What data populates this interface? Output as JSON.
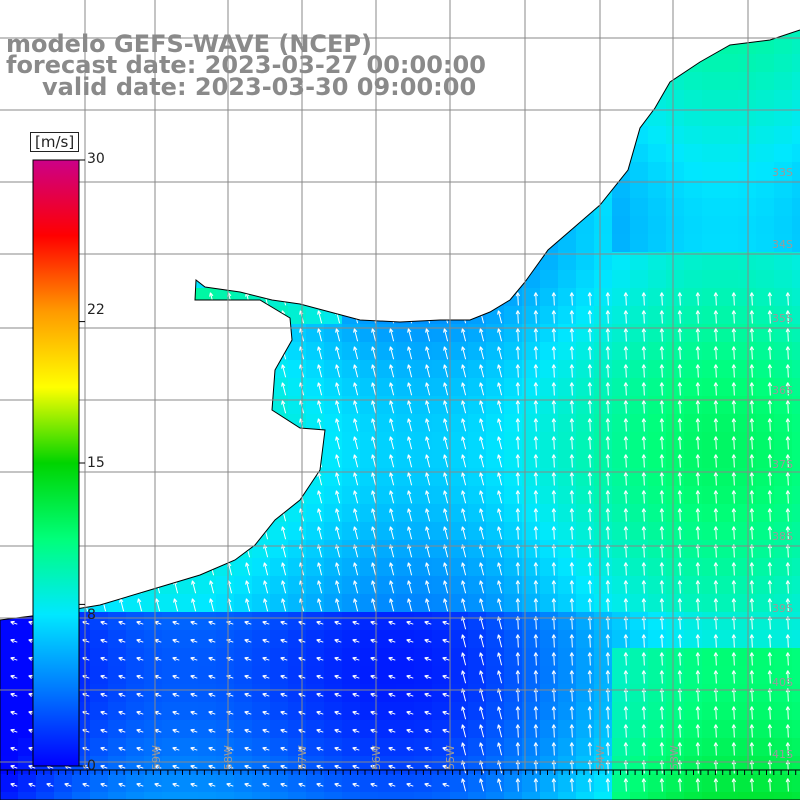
{
  "title": {
    "model": "modelo GEFS-WAVE (NCEP)",
    "forecast": "forecast date: 2023-03-27 00:00:00",
    "valid": "valid date: 2023-03-30 09:00:00"
  },
  "colorbar": {
    "unit": "[m/s]",
    "ticks": [
      "30",
      "22",
      "15",
      "8",
      "0"
    ],
    "tick_values": [
      30,
      22,
      15,
      8,
      0
    ],
    "range": [
      0,
      30
    ],
    "colors": [
      "#0000ff",
      "#0078ff",
      "#00e8ff",
      "#00ff7a",
      "#00d400",
      "#ffff00",
      "#ff9a00",
      "#ff0000",
      "#cc0088"
    ]
  },
  "map": {
    "lon_labels": [
      "59W",
      "58W",
      "57W",
      "56W",
      "55W",
      "54W",
      "53W"
    ],
    "lat_labels": [
      "33S",
      "34S",
      "35S",
      "36S",
      "37S",
      "38S",
      "39S",
      "40S",
      "41S"
    ],
    "land_color": "#ffffff",
    "grid_color": "#888888",
    "arrow_color": "#ffffff"
  }
}
